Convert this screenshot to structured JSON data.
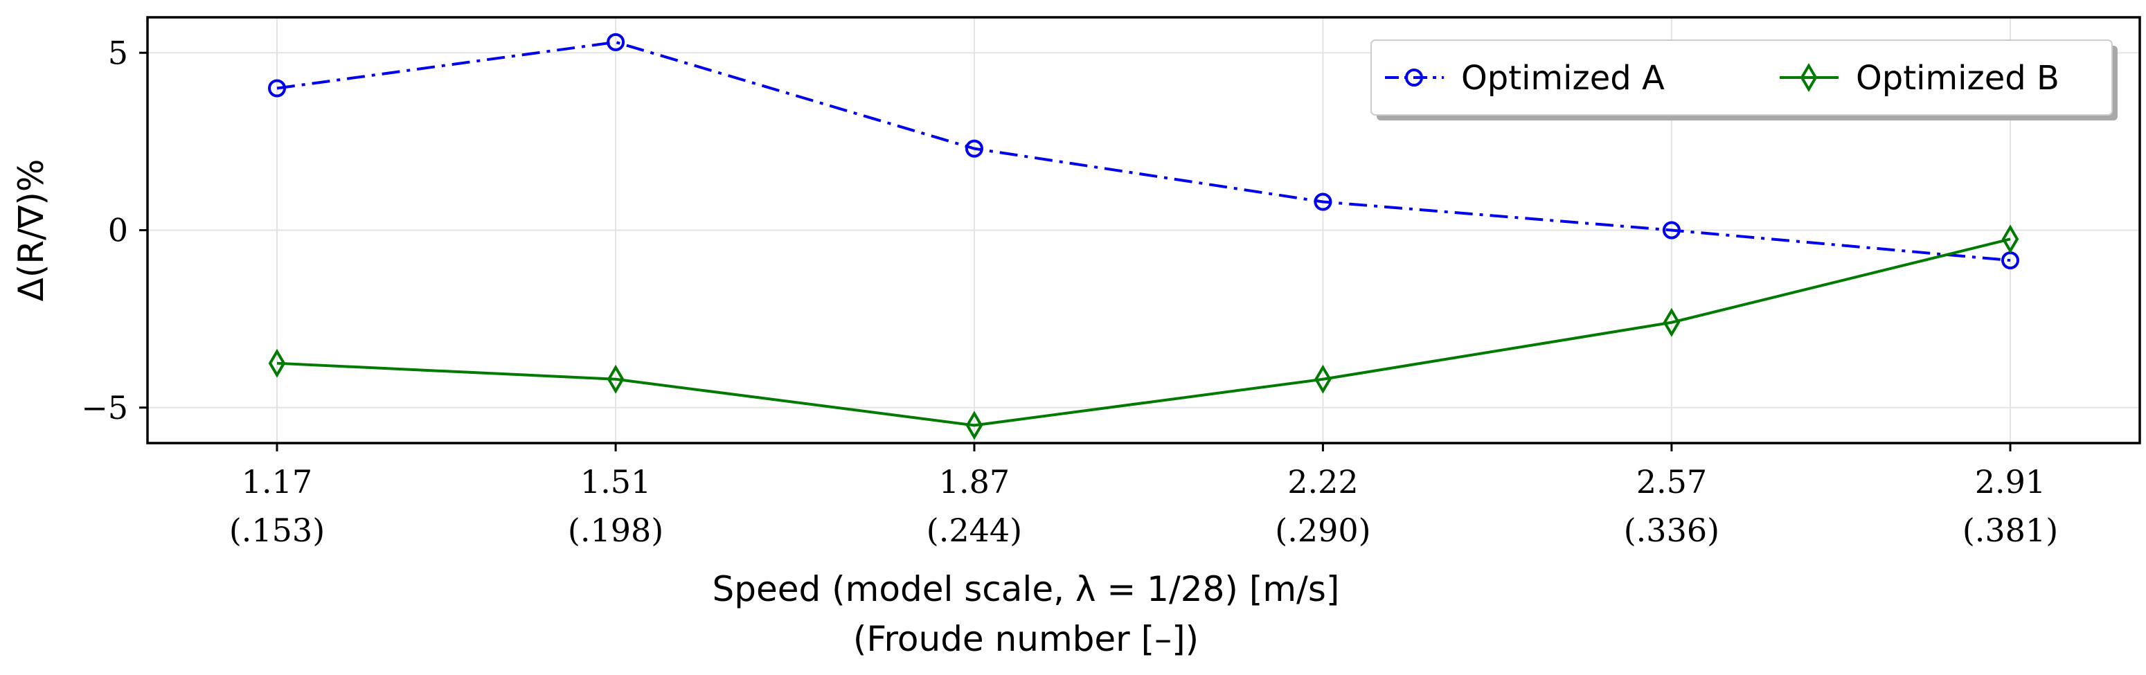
{
  "chart_data": {
    "type": "line",
    "x": [
      "1.17",
      "1.51",
      "1.87",
      "2.22",
      "2.57",
      "2.91"
    ],
    "x_values": [
      1.17,
      1.51,
      1.87,
      2.22,
      2.57,
      2.91
    ],
    "x_secondary_labels": [
      "(.153)",
      "(.198)",
      "(.244)",
      "(.290)",
      "(.336)",
      "(.381)"
    ],
    "xlabel": "Speed (model scale, λ = 1/28) [m/s]",
    "xlabel_secondary": "(Froude number [–])",
    "ylabel": "Δ(R/∇)%",
    "y_ticks": [
      5,
      0,
      -5
    ],
    "y_tick_labels": [
      "5",
      "0",
      "−5"
    ],
    "ylim": [
      -6.0,
      6.0
    ],
    "grid": true,
    "legend": "top-right",
    "series": [
      {
        "name": "Optimized A",
        "color": "#0000ee",
        "line_style": "dash-dot",
        "marker": "circle",
        "values": [
          4.0,
          5.3,
          2.3,
          0.8,
          0.0,
          -0.85
        ]
      },
      {
        "name": "Optimized B",
        "color": "#007a00",
        "line_style": "solid",
        "marker": "thin-diamond",
        "values": [
          -3.75,
          -4.2,
          -5.5,
          -4.2,
          -2.6,
          -0.25
        ]
      }
    ]
  }
}
